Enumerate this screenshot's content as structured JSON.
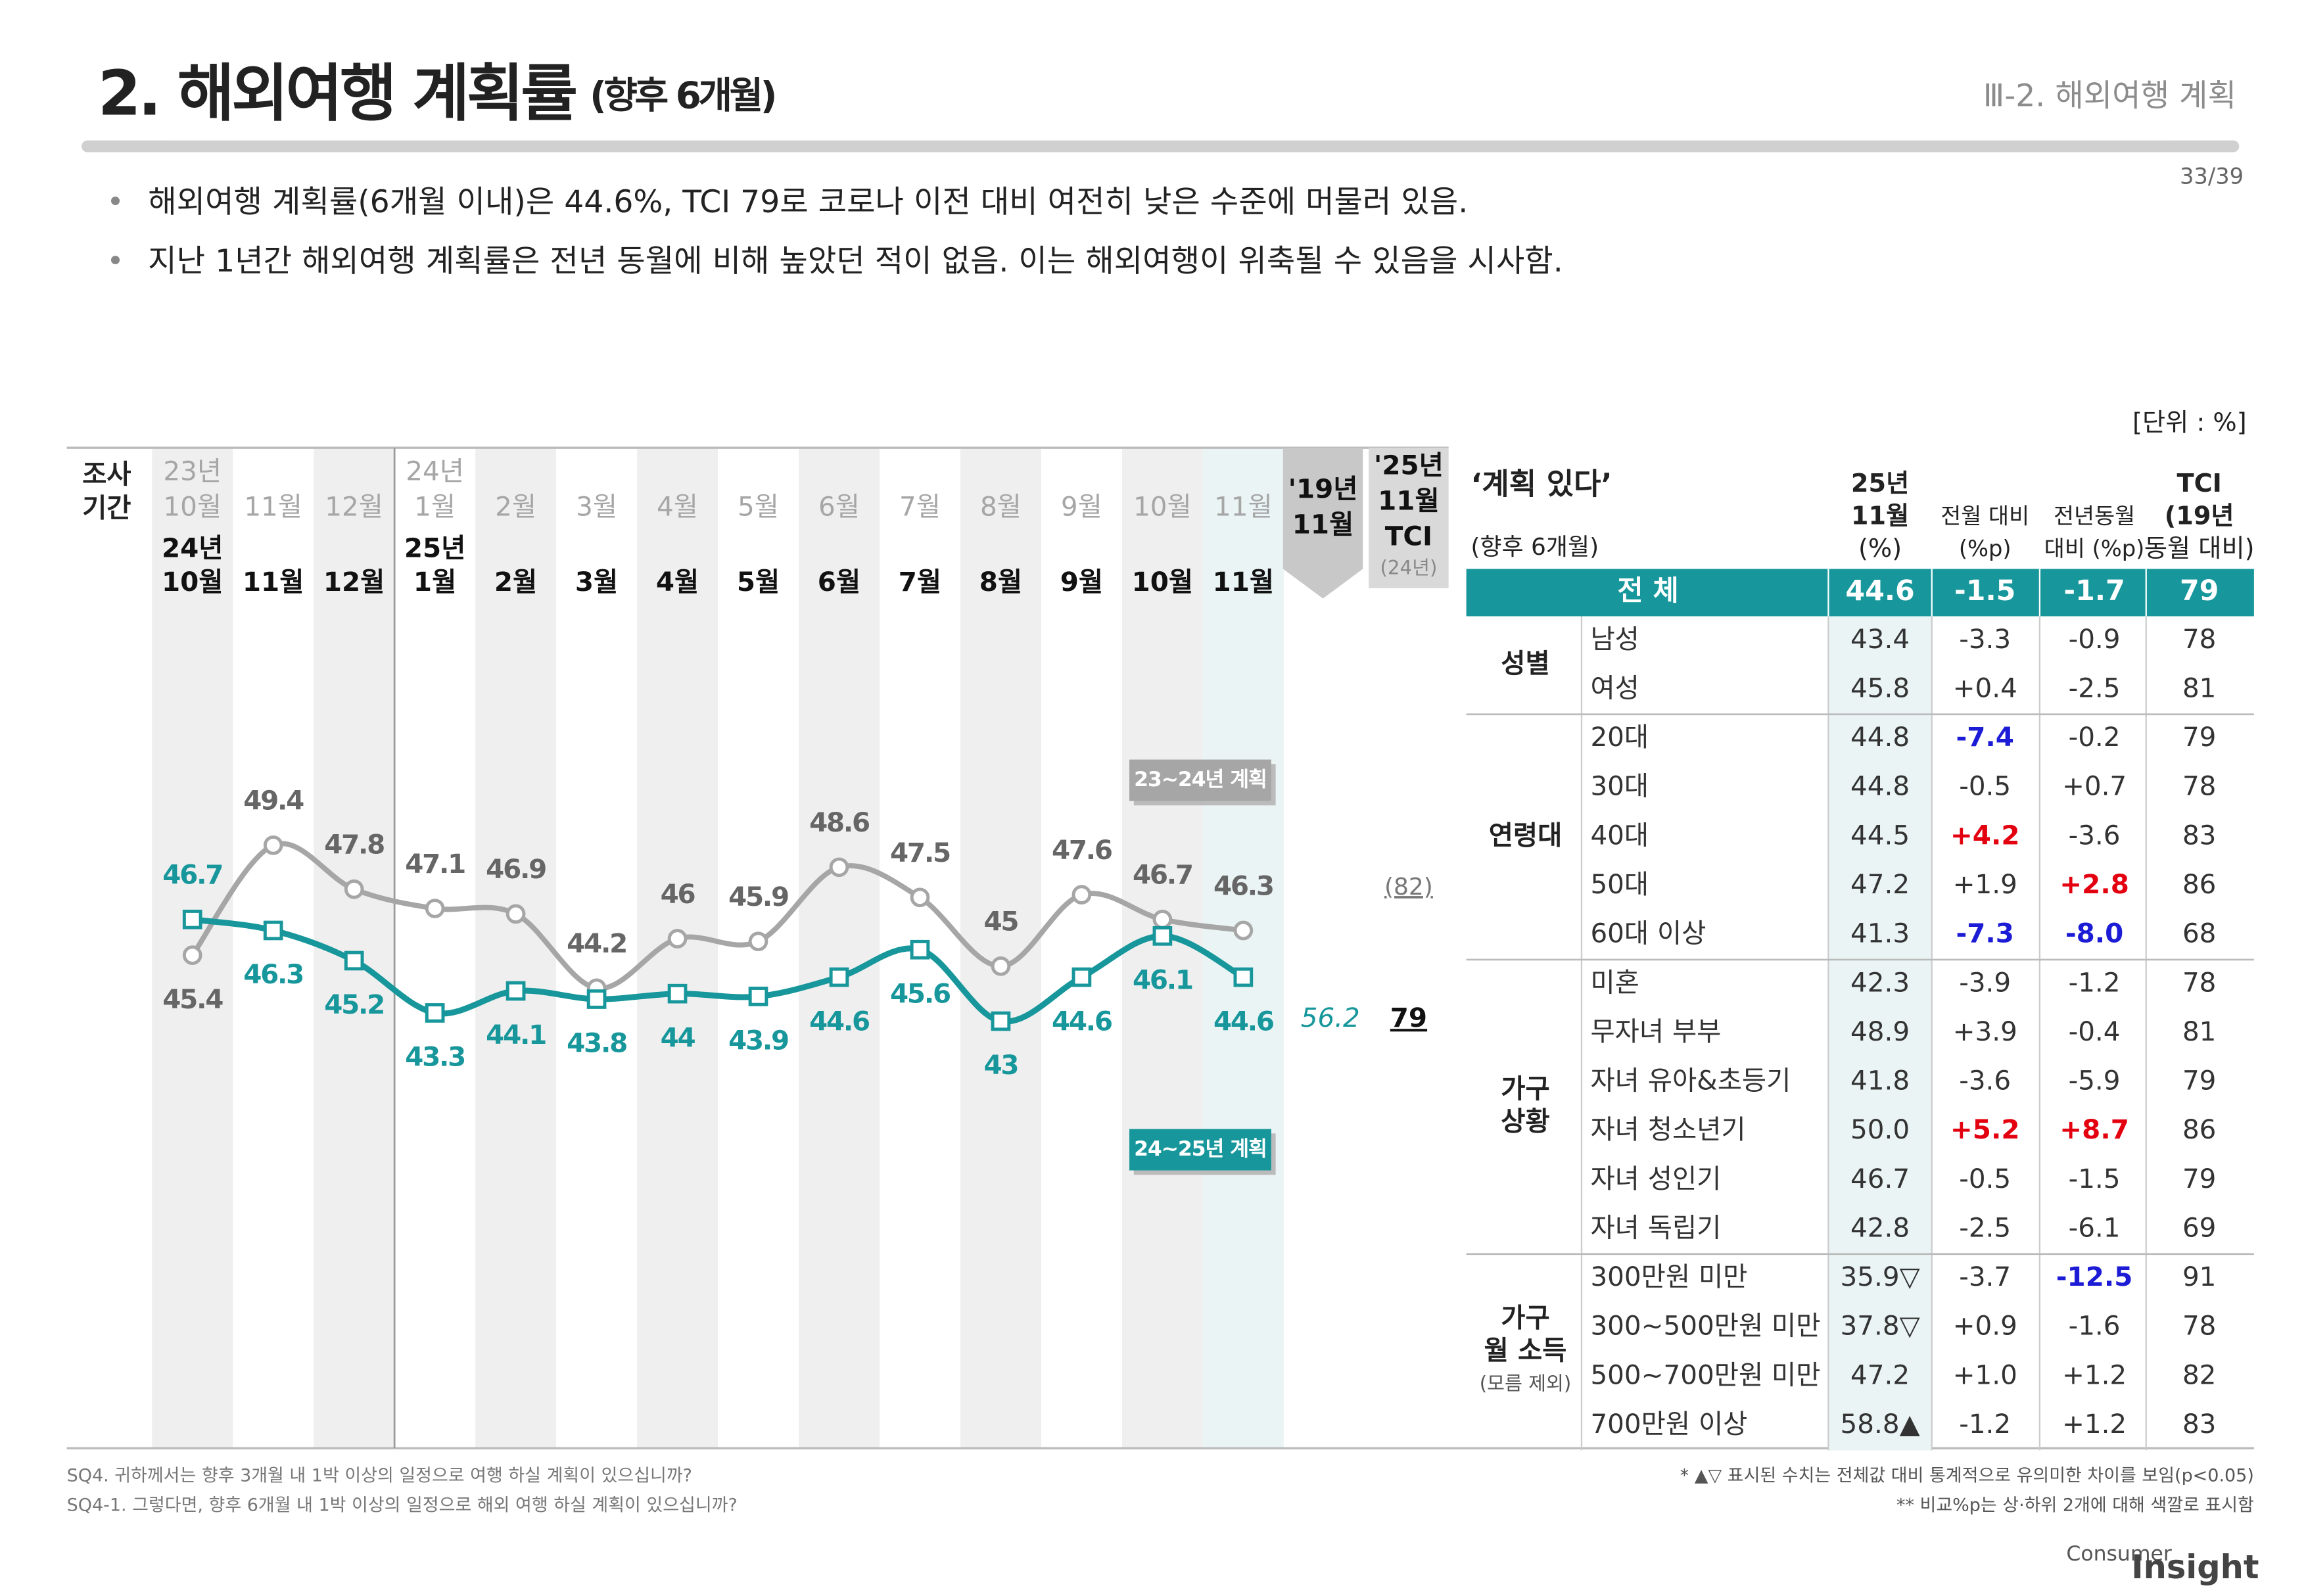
{
  "header": {
    "title": "2. 해외여행 계획률",
    "title_sub": "(향후 6개월)",
    "section": "Ⅲ-2. 해외여행 계획",
    "page": "33/39"
  },
  "bullets": [
    "해외여행 계획률(6개월 이내)은 44.6%, TCI 79로 코로나 이전 대비 여전히 낮은 수준에 머물러 있음.",
    "지난 1년간 해외여행 계획률은 전년 동월에 비해 높았던 적이 없음. 이는 해외여행이 위축될 수 있음을 시사함."
  ],
  "unit": "[단위 : %]",
  "chart_data": {
    "type": "line",
    "row_label": [
      "조사",
      "기간"
    ],
    "prev_categories": [
      [
        "23년",
        "10월"
      ],
      [
        "11월"
      ],
      [
        "12월"
      ],
      [
        "24년",
        "1월"
      ],
      [
        "2월"
      ],
      [
        "3월"
      ],
      [
        "4월"
      ],
      [
        "5월"
      ],
      [
        "6월"
      ],
      [
        "7월"
      ],
      [
        "8월"
      ],
      [
        "9월"
      ],
      [
        "10월"
      ],
      [
        "11월"
      ]
    ],
    "categories": [
      [
        "24년",
        "10월"
      ],
      [
        "11월"
      ],
      [
        "12월"
      ],
      [
        "25년",
        "1월"
      ],
      [
        "2월"
      ],
      [
        "3월"
      ],
      [
        "4월"
      ],
      [
        "5월"
      ],
      [
        "6월"
      ],
      [
        "7월"
      ],
      [
        "8월"
      ],
      [
        "9월"
      ],
      [
        "10월"
      ],
      [
        "11월"
      ]
    ],
    "ylim": [
      40,
      52
    ],
    "series": [
      {
        "name": "23~24년 계획",
        "color": "#a6a6a6",
        "values": [
          45.4,
          49.4,
          47.8,
          47.1,
          46.9,
          44.2,
          46.0,
          45.9,
          48.6,
          47.5,
          45.0,
          47.6,
          46.7,
          46.3
        ]
      },
      {
        "name": "24~25년 계획",
        "color": "#17979b",
        "values": [
          46.7,
          46.3,
          45.2,
          43.3,
          44.1,
          43.8,
          44.0,
          43.9,
          44.6,
          45.6,
          43.0,
          44.6,
          46.1,
          44.6
        ]
      }
    ],
    "reference": {
      "label": [
        "'19년",
        "11월"
      ],
      "value": 56.2
    },
    "tci": {
      "label": [
        "'25년",
        "11월",
        "TCI"
      ],
      "sub": "(24년)",
      "value": 79,
      "prev": {
        "value": 82,
        "label": "(82)"
      }
    }
  },
  "table": {
    "title": "‘계획 있다’",
    "title_sub": "(향후 6개월)",
    "columns": [
      [
        "25년",
        "11월",
        "(%)"
      ],
      [
        "전월 대비",
        "(%p)"
      ],
      [
        "전년동월",
        "대비 (%p)"
      ],
      [
        "TCI",
        "(19년",
        "동월 대비)"
      ]
    ],
    "total": {
      "label": "전 체",
      "cells": [
        "44.6",
        "-1.5",
        "-1.7",
        "79"
      ]
    },
    "groups": [
      {
        "label": [
          "성별"
        ],
        "rows": [
          {
            "label": "남성",
            "cells": [
              "43.4",
              "-3.3",
              "-0.9",
              "78"
            ]
          },
          {
            "label": "여성",
            "cells": [
              "45.8",
              "+0.4",
              "-2.5",
              "81"
            ]
          }
        ]
      },
      {
        "label": [
          "연령대"
        ],
        "rows": [
          {
            "label": "20대",
            "cells": [
              "44.8",
              {
                "text": "-7.4",
                "color": "#1c1cd6"
              },
              "-0.2",
              "79"
            ]
          },
          {
            "label": "30대",
            "cells": [
              "44.8",
              "-0.5",
              "+0.7",
              "78"
            ]
          },
          {
            "label": "40대",
            "cells": [
              "44.5",
              {
                "text": "+4.2",
                "color": "#e3000f"
              },
              "-3.6",
              "83"
            ]
          },
          {
            "label": "50대",
            "cells": [
              "47.2",
              "+1.9",
              {
                "text": "+2.8",
                "color": "#e3000f"
              },
              "86"
            ]
          },
          {
            "label": "60대 이상",
            "cells": [
              "41.3",
              {
                "text": "-7.3",
                "color": "#1c1cd6"
              },
              {
                "text": "-8.0",
                "color": "#1c1cd6"
              },
              "68"
            ]
          }
        ]
      },
      {
        "label": [
          "가구",
          "상황"
        ],
        "rows": [
          {
            "label": "미혼",
            "cells": [
              "42.3",
              "-3.9",
              "-1.2",
              "78"
            ]
          },
          {
            "label": "무자녀 부부",
            "cells": [
              "48.9",
              "+3.9",
              "-0.4",
              "81"
            ]
          },
          {
            "label": "자녀 유아&초등기",
            "cells": [
              "41.8",
              "-3.6",
              "-5.9",
              "79"
            ]
          },
          {
            "label": "자녀 청소년기",
            "cells": [
              "50.0",
              {
                "text": "+5.2",
                "color": "#e3000f"
              },
              {
                "text": "+8.7",
                "color": "#e3000f"
              },
              "86"
            ]
          },
          {
            "label": "자녀 성인기",
            "cells": [
              "46.7",
              "-0.5",
              "-1.5",
              "79"
            ]
          },
          {
            "label": "자녀 독립기",
            "cells": [
              "42.8",
              "-2.5",
              "-6.1",
              "69"
            ]
          }
        ]
      },
      {
        "label": [
          "가구",
          "월 소득"
        ],
        "sub": "(모름 제외)",
        "rows": [
          {
            "label": "300만원 미만",
            "cells": [
              "35.9▽",
              "-3.7",
              {
                "text": "-12.5",
                "color": "#1c1cd6"
              },
              "91"
            ]
          },
          {
            "label": "300~500만원 미만",
            "cells": [
              "37.8▽",
              "+0.9",
              "-1.6",
              "78"
            ]
          },
          {
            "label": "500~700만원 미만",
            "cells": [
              "47.2",
              "+1.0",
              "+1.2",
              "82"
            ]
          },
          {
            "label": "700만원 이상",
            "cells": [
              "58.8▲",
              "-1.2",
              "+1.2",
              "83"
            ]
          }
        ]
      }
    ]
  },
  "footnotes": {
    "left": [
      "SQ4. 귀하께서는 향후 3개월 내 1박 이상의 일정으로 여행 하실 계획이 있으십니까?",
      "SQ4-1. 그렇다면, 향후 6개월 내 1박 이상의 일정으로 해외 여행 하실 계획이 있으십니까?"
    ],
    "right": [
      "* ▲▽ 표시된 수치는 전체값 대비 통계적으로 유의미한 차이를 보임(p<0.05)",
      "** 비교%p는 상·하위 2개에 대해 색깔로 표시함"
    ]
  },
  "brand": [
    "Consumer",
    "Insight"
  ]
}
